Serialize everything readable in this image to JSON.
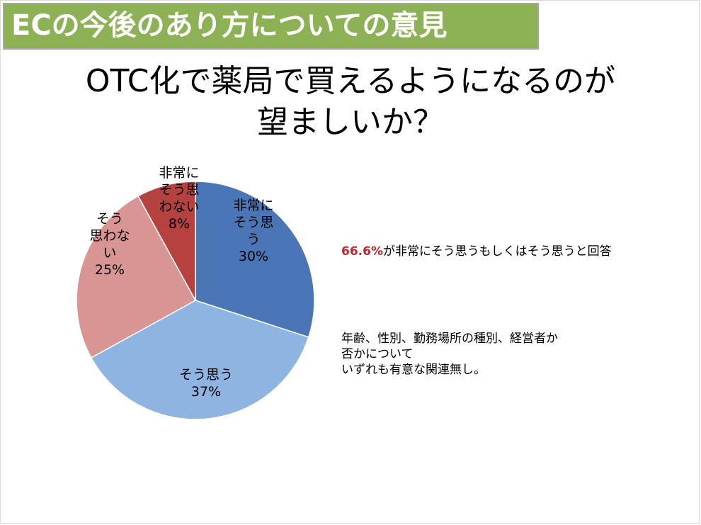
{
  "header": {
    "title": "ECの今後のあり方についての意見"
  },
  "main": {
    "title_line1": "OTC化で薬局で買えるようになるのが",
    "title_line2": "望ましいか？"
  },
  "chart_data": {
    "type": "pie",
    "start": "12 o'clock, clockwise",
    "slices": [
      {
        "label_lines": [
          "非常に",
          "そう思",
          "う"
        ],
        "value": 30,
        "value_label": "30%",
        "color": "#4a76b8"
      },
      {
        "label_lines": [
          "そう思う"
        ],
        "value": 37,
        "value_label": "37%",
        "color": "#8eb4e2"
      },
      {
        "label_lines": [
          "そう",
          "思わな",
          "い"
        ],
        "value": 25,
        "value_label": "25%",
        "color": "#d89593"
      },
      {
        "label_lines": [
          "非常に",
          "そう思",
          "わない"
        ],
        "value": 8,
        "value_label": "8%",
        "color": "#b5423f"
      }
    ]
  },
  "notes": {
    "summary_pct": "66.6%",
    "summary_rest": "が非常にそう思うもしくはそう思うと回答",
    "detail_line1": "年齢、性別、勤務場所の種別、経営者か",
    "detail_line2": "否かについて",
    "detail_line3": "いずれも有意な関連無し。"
  }
}
